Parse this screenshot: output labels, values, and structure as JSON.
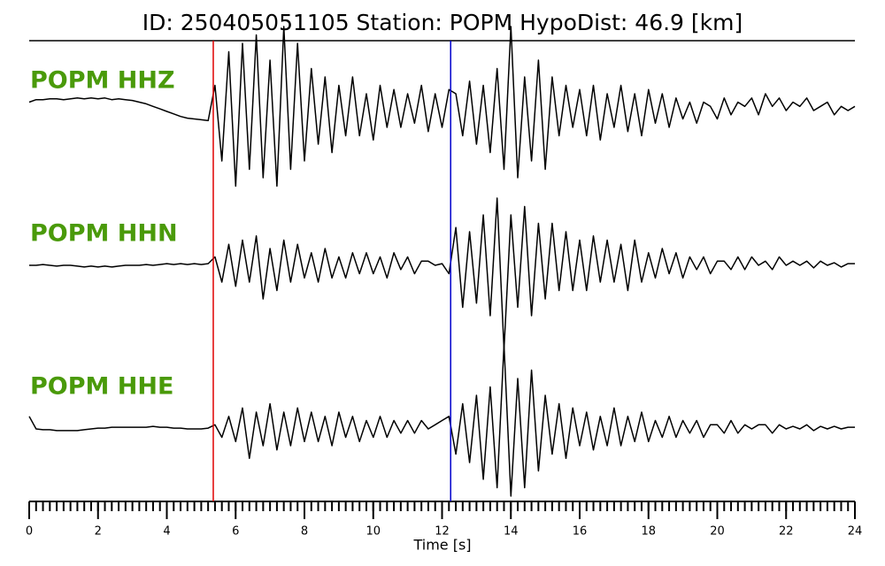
{
  "chart_data": {
    "type": "line",
    "title": "ID: 250405051105   Station: POPM   HypoDist:    46.9 [km]",
    "xlabel": "Time [s]",
    "xlim": [
      0,
      24
    ],
    "xticks": [
      0,
      2,
      4,
      6,
      8,
      10,
      12,
      14,
      16,
      18,
      20,
      22,
      24
    ],
    "xminorticks": [
      0,
      0.2,
      0.4,
      0.6,
      0.8,
      1,
      1.2,
      1.4,
      1.6,
      1.8,
      2,
      2.2,
      2.4,
      2.6,
      2.8,
      3,
      3.2,
      3.4,
      3.6,
      3.8,
      4,
      4.2,
      4.4,
      4.6,
      4.8,
      5,
      5.2,
      5.4,
      5.6,
      5.8,
      6,
      6.2,
      6.4,
      6.6,
      6.8,
      7,
      7.2,
      7.4,
      7.6,
      7.8,
      8,
      8.2,
      8.4,
      8.6,
      8.8,
      9,
      9.2,
      9.4,
      9.6,
      9.8,
      10,
      10.2,
      10.4,
      10.6,
      10.8,
      11,
      11.2,
      11.4,
      11.6,
      11.8,
      12,
      12.2,
      12.4,
      12.6,
      12.8,
      13,
      13.2,
      13.4,
      13.6,
      13.8,
      14,
      14.2,
      14.4,
      14.6,
      14.8,
      15,
      15.2,
      15.4,
      15.6,
      15.8,
      16,
      16.2,
      16.4,
      16.6,
      16.8,
      17,
      17.2,
      17.4,
      17.6,
      17.8,
      18,
      18.2,
      18.4,
      18.6,
      18.8,
      19,
      19.2,
      19.4,
      19.6,
      19.8,
      20,
      20.2,
      20.4,
      20.6,
      20.8,
      21,
      21.2,
      21.4,
      21.6,
      21.8,
      22,
      22.2,
      22.4,
      22.6,
      22.8,
      23,
      23.2,
      23.4,
      23.6,
      23.8,
      24
    ],
    "ylim": [
      -1,
      1
    ],
    "label_color": "#4a9a0a",
    "markers": [
      {
        "x": 5.35,
        "color": "#e00000"
      },
      {
        "x": 12.25,
        "color": "#0000cc"
      }
    ],
    "x": [
      0,
      0.2,
      0.4,
      0.6,
      0.8,
      1,
      1.2,
      1.4,
      1.6,
      1.8,
      2,
      2.2,
      2.4,
      2.6,
      2.8,
      3,
      3.2,
      3.4,
      3.6,
      3.8,
      4,
      4.2,
      4.4,
      4.6,
      4.8,
      5,
      5.2,
      5.4,
      5.6,
      5.8,
      6,
      6.2,
      6.4,
      6.6,
      6.8,
      7,
      7.2,
      7.4,
      7.6,
      7.8,
      8,
      8.2,
      8.4,
      8.6,
      8.8,
      9,
      9.2,
      9.4,
      9.6,
      9.8,
      10,
      10.2,
      10.4,
      10.6,
      10.8,
      11,
      11.2,
      11.4,
      11.6,
      11.8,
      12,
      12.2,
      12.4,
      12.6,
      12.8,
      13,
      13.2,
      13.4,
      13.6,
      13.8,
      14,
      14.2,
      14.4,
      14.6,
      14.8,
      15,
      15.2,
      15.4,
      15.6,
      15.8,
      16,
      16.2,
      16.4,
      16.6,
      16.8,
      17,
      17.2,
      17.4,
      17.6,
      17.8,
      18,
      18.2,
      18.4,
      18.6,
      18.8,
      19,
      19.2,
      19.4,
      19.6,
      19.8,
      20,
      20.2,
      20.4,
      20.6,
      20.8,
      21,
      21.2,
      21.4,
      21.6,
      21.8,
      22,
      22.2,
      22.4,
      22.6,
      22.8,
      23,
      23.2,
      23.4,
      23.6,
      23.8,
      24
    ],
    "series": [
      {
        "name": "POPM HHZ",
        "color": "#000000",
        "values": [
          0.1,
          0.13,
          0.13,
          0.14,
          0.14,
          0.13,
          0.14,
          0.15,
          0.14,
          0.15,
          0.14,
          0.15,
          0.13,
          0.14,
          0.13,
          0.12,
          0.1,
          0.08,
          0.05,
          0.02,
          -0.01,
          -0.04,
          -0.07,
          -0.09,
          -0.1,
          -0.11,
          -0.12,
          0.3,
          -0.6,
          0.7,
          -0.9,
          0.8,
          -0.7,
          0.9,
          -0.8,
          0.6,
          -0.9,
          1.0,
          -0.7,
          0.8,
          -0.6,
          0.5,
          -0.4,
          0.4,
          -0.5,
          0.3,
          -0.3,
          0.4,
          -0.3,
          0.2,
          -0.35,
          0.3,
          -0.2,
          0.25,
          -0.2,
          0.2,
          -0.15,
          0.3,
          -0.25,
          0.2,
          -0.2,
          0.25,
          0.2,
          -0.3,
          0.35,
          -0.4,
          0.3,
          -0.5,
          0.5,
          -0.7,
          1.0,
          -0.8,
          0.4,
          -0.6,
          0.6,
          -0.7,
          0.4,
          -0.3,
          0.3,
          -0.2,
          0.25,
          -0.3,
          0.3,
          -0.35,
          0.2,
          -0.2,
          0.3,
          -0.25,
          0.2,
          -0.3,
          0.25,
          -0.15,
          0.2,
          -0.2,
          0.15,
          -0.1,
          0.1,
          -0.15,
          0.1,
          0.05,
          -0.1,
          0.15,
          -0.05,
          0.1,
          0.05,
          0.15,
          -0.05,
          0.2,
          0.05,
          0.15,
          0.0,
          0.1,
          0.05,
          0.15,
          0.0,
          0.05,
          0.1,
          -0.05,
          0.05,
          0.0,
          0.05
        ]
      },
      {
        "name": "POPM HHN",
        "color": "#000000",
        "values": [
          0,
          0,
          0.01,
          0,
          -0.01,
          0,
          0,
          -0.01,
          -0.02,
          -0.01,
          -0.02,
          -0.01,
          -0.02,
          -0.01,
          0,
          0,
          0,
          0.01,
          0,
          0.01,
          0.02,
          0.01,
          0.02,
          0.01,
          0.02,
          0.01,
          0.02,
          0.1,
          -0.2,
          0.25,
          -0.25,
          0.3,
          -0.2,
          0.35,
          -0.4,
          0.2,
          -0.3,
          0.3,
          -0.2,
          0.25,
          -0.15,
          0.15,
          -0.2,
          0.2,
          -0.15,
          0.1,
          -0.15,
          0.15,
          -0.1,
          0.15,
          -0.1,
          0.1,
          -0.15,
          0.15,
          -0.05,
          0.1,
          -0.1,
          0.05,
          0.05,
          0.0,
          0.02,
          -0.1,
          0.45,
          -0.5,
          0.4,
          -0.45,
          0.6,
          -0.6,
          0.8,
          -1.0,
          0.6,
          -0.5,
          0.7,
          -0.6,
          0.5,
          -0.4,
          0.5,
          -0.3,
          0.4,
          -0.3,
          0.3,
          -0.3,
          0.35,
          -0.2,
          0.3,
          -0.2,
          0.25,
          -0.3,
          0.3,
          -0.2,
          0.15,
          -0.15,
          0.2,
          -0.1,
          0.15,
          -0.15,
          0.1,
          -0.05,
          0.1,
          -0.1,
          0.05,
          0.05,
          -0.05,
          0.1,
          -0.05,
          0.1,
          0,
          0.05,
          -0.05,
          0.1,
          0,
          0.05,
          0,
          0.05,
          -0.03,
          0.05,
          0,
          0.03,
          -0.02,
          0.02,
          0.02
        ]
      },
      {
        "name": "POPM HHE",
        "color": "#000000",
        "values": [
          0.15,
          0,
          -0.01,
          -0.01,
          -0.02,
          -0.02,
          -0.02,
          -0.02,
          -0.01,
          0,
          0.01,
          0.01,
          0.02,
          0.02,
          0.02,
          0.02,
          0.02,
          0.02,
          0.03,
          0.02,
          0.02,
          0.01,
          0.01,
          0,
          0,
          0,
          0.01,
          0.05,
          -0.1,
          0.15,
          -0.15,
          0.25,
          -0.35,
          0.2,
          -0.2,
          0.3,
          -0.25,
          0.2,
          -0.2,
          0.25,
          -0.15,
          0.2,
          -0.15,
          0.15,
          -0.2,
          0.2,
          -0.1,
          0.15,
          -0.15,
          0.1,
          -0.1,
          0.15,
          -0.1,
          0.1,
          -0.05,
          0.1,
          -0.05,
          0.1,
          0,
          0.05,
          0.1,
          0.15,
          -0.3,
          0.3,
          -0.4,
          0.4,
          -0.6,
          0.5,
          -0.7,
          1.0,
          -0.8,
          0.6,
          -0.7,
          0.7,
          -0.5,
          0.4,
          -0.3,
          0.3,
          -0.35,
          0.25,
          -0.2,
          0.2,
          -0.25,
          0.15,
          -0.2,
          0.25,
          -0.2,
          0.15,
          -0.15,
          0.2,
          -0.15,
          0.1,
          -0.1,
          0.15,
          -0.1,
          0.1,
          -0.05,
          0.1,
          -0.1,
          0.05,
          0.05,
          -0.05,
          0.1,
          -0.05,
          0.05,
          0,
          0.05,
          0.05,
          -0.05,
          0.05,
          0,
          0.03,
          0,
          0.05,
          -0.02,
          0.03,
          0,
          0.03,
          0,
          0.02,
          0.02
        ]
      }
    ]
  }
}
